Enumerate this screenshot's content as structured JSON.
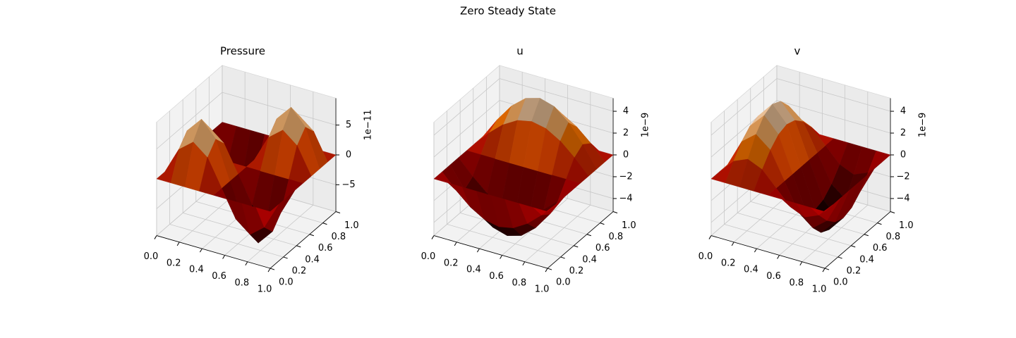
{
  "title": "Zero Steady State",
  "chart_data": [
    {
      "type": "surface",
      "title": "Pressure",
      "colormap": "gist_heat",
      "z_offset_label": "1e−11",
      "x": [
        0,
        0.125,
        0.25,
        0.375,
        0.5,
        0.625,
        0.75,
        0.875,
        1
      ],
      "y": [
        0,
        0.125,
        0.25,
        0.375,
        0.5,
        0.625,
        0.75,
        0.875,
        1
      ],
      "z": [
        [
          0,
          0,
          0,
          0,
          0,
          0,
          0,
          0,
          0
        ],
        [
          0,
          4.5,
          6.4,
          4.5,
          0,
          -4.5,
          -6.4,
          -4.5,
          0
        ],
        [
          0,
          6.4,
          9,
          6.4,
          0,
          -6.4,
          -9,
          -6.4,
          0
        ],
        [
          0,
          4.5,
          6.4,
          4.5,
          0,
          -4.5,
          -6.4,
          -4.5,
          0
        ],
        [
          0,
          0,
          0,
          0,
          0,
          0,
          0,
          0,
          0
        ],
        [
          0,
          -4.5,
          -6.4,
          -4.5,
          0,
          4.5,
          6.4,
          4.5,
          0
        ],
        [
          0,
          -6.4,
          -9,
          -6.4,
          0,
          6.4,
          9,
          6.4,
          0
        ],
        [
          0,
          -4.5,
          -6.4,
          -4.5,
          0,
          4.5,
          6.4,
          4.5,
          0
        ],
        [
          0,
          0,
          0,
          0,
          0,
          0,
          0,
          0,
          0
        ]
      ],
      "xlim": [
        0,
        1
      ],
      "ylim": [
        0,
        1
      ],
      "zlim": [
        -9.5,
        9.5
      ],
      "xticks": [
        {
          "value": 0,
          "label": "0.0"
        },
        0.2,
        0.4,
        0.6,
        0.8,
        {
          "value": 1,
          "label": "1.0"
        }
      ],
      "yticks": [
        {
          "value": 0,
          "label": "0.0"
        },
        0.2,
        0.4,
        0.6,
        0.8,
        {
          "value": 1,
          "label": "1.0"
        }
      ],
      "zticks": [
        {
          "value": -5,
          "label": "−5"
        },
        0,
        5
      ]
    },
    {
      "type": "surface",
      "title": "u",
      "colormap": "gist_heat",
      "z_offset_label": "1e−9",
      "x": [
        0,
        0.125,
        0.25,
        0.375,
        0.5,
        0.625,
        0.75,
        0.875,
        1
      ],
      "y": [
        0,
        0.125,
        0.25,
        0.375,
        0.5,
        0.625,
        0.75,
        0.875,
        1
      ],
      "z": [
        [
          0,
          0,
          0,
          0,
          0,
          0,
          0,
          0,
          0
        ],
        [
          0,
          -1.35,
          -2.5,
          -3.27,
          -3.54,
          -3.27,
          -2.5,
          -1.35,
          0
        ],
        [
          0,
          -1.91,
          -3.54,
          -4.62,
          -5,
          -4.62,
          -3.54,
          -1.91,
          0
        ],
        [
          0,
          -1.35,
          -2.5,
          -3.27,
          -3.54,
          -3.27,
          -2.5,
          -1.35,
          0
        ],
        [
          0,
          0,
          0,
          0,
          0,
          0,
          0,
          0,
          0
        ],
        [
          0,
          1.35,
          2.5,
          3.27,
          3.54,
          3.27,
          2.5,
          1.35,
          0
        ],
        [
          0,
          1.91,
          3.54,
          4.62,
          5,
          4.62,
          3.54,
          1.91,
          0
        ],
        [
          0,
          1.35,
          2.5,
          3.27,
          3.54,
          3.27,
          2.5,
          1.35,
          0
        ],
        [
          0,
          0,
          0,
          0,
          0,
          0,
          0,
          0,
          0
        ]
      ],
      "xlim": [
        0,
        1
      ],
      "ylim": [
        0,
        1
      ],
      "zlim": [
        -5.2,
        5.2
      ],
      "xticks": [
        {
          "value": 0,
          "label": "0.0"
        },
        0.2,
        0.4,
        0.6,
        0.8,
        {
          "value": 1,
          "label": "1.0"
        }
      ],
      "yticks": [
        {
          "value": 0,
          "label": "0.0"
        },
        0.2,
        0.4,
        0.6,
        0.8,
        {
          "value": 1,
          "label": "1.0"
        }
      ],
      "zticks": [
        {
          "value": -4,
          "label": "−4"
        },
        {
          "value": -2,
          "label": "−2"
        },
        0,
        2,
        4
      ]
    },
    {
      "type": "surface",
      "title": "v",
      "colormap": "gist_heat",
      "z_offset_label": "1e−9",
      "x": [
        0,
        0.125,
        0.25,
        0.375,
        0.5,
        0.625,
        0.75,
        0.875,
        1
      ],
      "y": [
        0,
        0.125,
        0.25,
        0.375,
        0.5,
        0.625,
        0.75,
        0.875,
        1
      ],
      "z": [
        [
          0,
          0,
          0,
          0,
          0,
          0,
          0,
          0,
          0
        ],
        [
          0,
          1.35,
          1.91,
          1.35,
          0,
          -1.35,
          -1.91,
          -1.35,
          0
        ],
        [
          0,
          2.5,
          3.54,
          2.5,
          0,
          -2.5,
          -3.54,
          -2.5,
          0
        ],
        [
          0,
          3.27,
          4.62,
          3.27,
          0,
          -3.27,
          -4.62,
          -3.27,
          0
        ],
        [
          0,
          3.54,
          5,
          3.54,
          0,
          -3.54,
          -5,
          -3.54,
          0
        ],
        [
          0,
          3.27,
          4.62,
          3.27,
          0,
          -3.27,
          -4.62,
          -3.27,
          0
        ],
        [
          0,
          2.5,
          3.54,
          2.5,
          0,
          -2.5,
          -3.54,
          -2.5,
          0
        ],
        [
          0,
          1.35,
          1.91,
          1.35,
          0,
          -1.35,
          -1.91,
          -1.35,
          0
        ],
        [
          0,
          0,
          0,
          0,
          0,
          0,
          0,
          0,
          0
        ]
      ],
      "xlim": [
        0,
        1
      ],
      "ylim": [
        0,
        1
      ],
      "zlim": [
        -5.2,
        5.2
      ],
      "xticks": [
        {
          "value": 0,
          "label": "0.0"
        },
        0.2,
        0.4,
        0.6,
        0.8,
        {
          "value": 1,
          "label": "1.0"
        }
      ],
      "yticks": [
        {
          "value": 0,
          "label": "0.0"
        },
        0.2,
        0.4,
        0.6,
        0.8,
        {
          "value": 1,
          "label": "1.0"
        }
      ],
      "zticks": [
        {
          "value": -4,
          "label": "−4"
        },
        {
          "value": -2,
          "label": "−2"
        },
        0,
        2,
        4
      ]
    }
  ]
}
